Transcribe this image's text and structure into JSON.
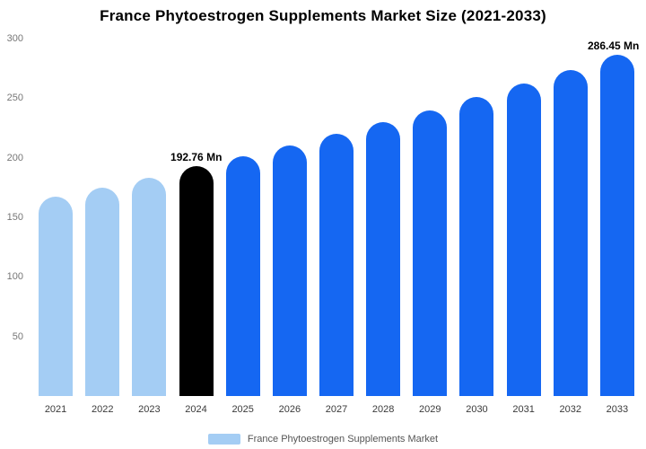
{
  "title": "France Phytoestrogen Supplements Market Size (2021-2033)",
  "legend": {
    "label": "France Phytoestrogen Supplements Market",
    "swatch_color": "#a4cdf4"
  },
  "colors": {
    "light_blue": "#a4cdf4",
    "primary_blue": "#1567f2",
    "highlight_black": "#000000",
    "y_axis_text": "#767676",
    "x_axis_text": "#3a3a3a"
  },
  "chart_data": {
    "type": "bar",
    "title": "France Phytoestrogen Supplements Market Size (2021-2033)",
    "xlabel": "",
    "ylabel": "",
    "ylim": [
      0,
      300
    ],
    "yticks": [
      50,
      100,
      150,
      200,
      250,
      300
    ],
    "grid": false,
    "legend_position": "bottom",
    "categories": [
      "2021",
      "2022",
      "2023",
      "2024",
      "2025",
      "2026",
      "2027",
      "2028",
      "2029",
      "2030",
      "2031",
      "2032",
      "2033"
    ],
    "values": [
      167,
      175,
      183,
      192.76,
      201,
      210,
      220,
      230,
      240,
      251,
      262,
      274,
      286.45
    ],
    "bar_colors": [
      "#a4cdf4",
      "#a4cdf4",
      "#a4cdf4",
      "#000000",
      "#1567f2",
      "#1567f2",
      "#1567f2",
      "#1567f2",
      "#1567f2",
      "#1567f2",
      "#1567f2",
      "#1567f2",
      "#1567f2"
    ],
    "series": [
      {
        "name": "France Phytoestrogen Supplements Market",
        "values": [
          167,
          175,
          183,
          192.76,
          201,
          210,
          220,
          230,
          240,
          251,
          262,
          274,
          286.45
        ]
      }
    ],
    "annotations": [
      {
        "category": "2024",
        "text": "192.76 Mn"
      },
      {
        "category": "2033",
        "text": "286.45 Mn"
      }
    ]
  }
}
